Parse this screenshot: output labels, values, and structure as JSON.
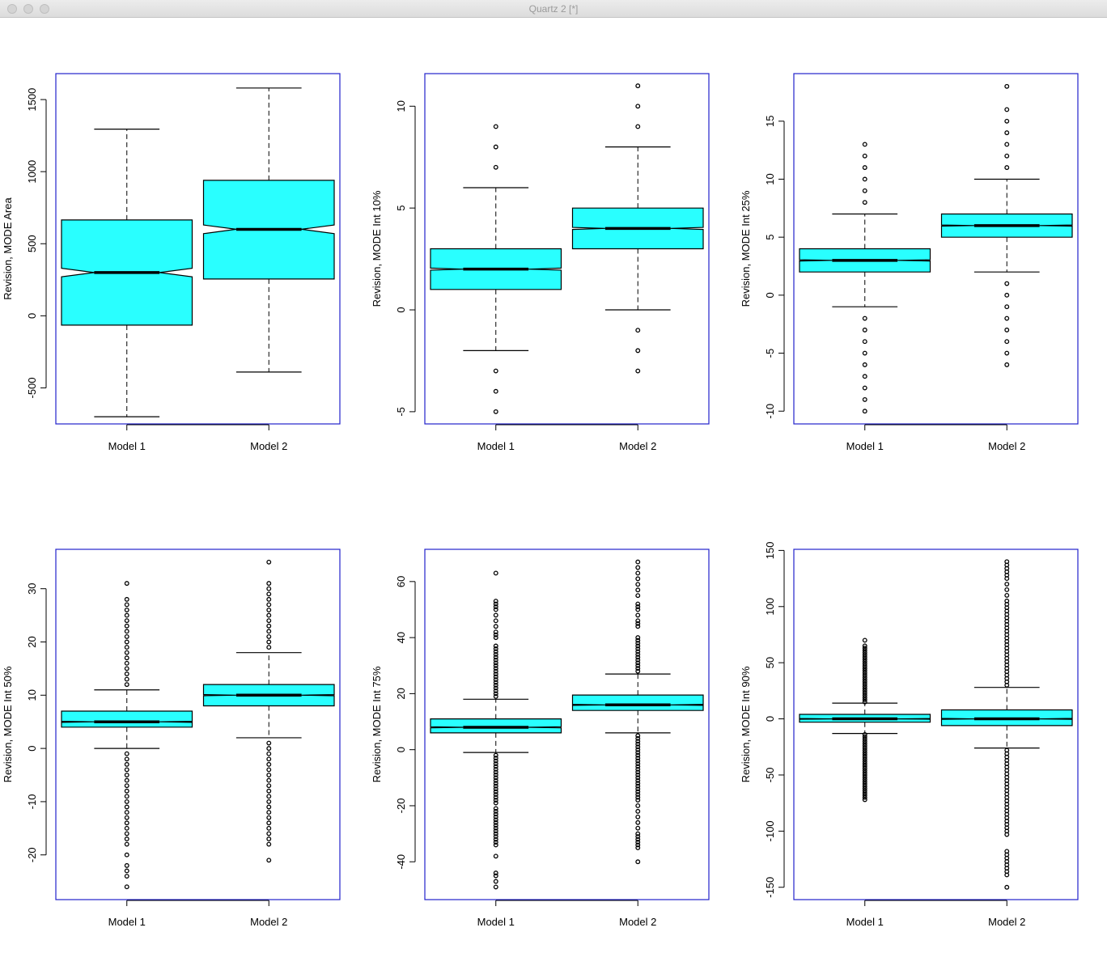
{
  "window": {
    "title": "Quartz 2 [*]"
  },
  "colors": {
    "box_fill": "#29ffff",
    "frame": "#2222cc",
    "ink": "#000000"
  },
  "chart_data": [
    {
      "type": "boxplot",
      "notched": true,
      "ylabel": "Revision, MODE Area",
      "ylim": [
        -750,
        1680
      ],
      "yticks": [
        -500,
        0,
        500,
        1000,
        1500
      ],
      "categories": [
        "Model 1",
        "Model 2"
      ],
      "boxes": [
        {
          "name": "Model 1",
          "q1": -65,
          "median": 300,
          "q3": 665,
          "whisker_low": -700,
          "whisker_high": 1295,
          "notch_low": 270,
          "notch_high": 330,
          "outliers": []
        },
        {
          "name": "Model 2",
          "q1": 255,
          "median": 600,
          "q3": 940,
          "whisker_low": -390,
          "whisker_high": 1580,
          "notch_low": 570,
          "notch_high": 630,
          "outliers": []
        }
      ]
    },
    {
      "type": "boxplot",
      "notched": true,
      "ylabel": "Revision, MODE Int 10%",
      "ylim": [
        -5.6,
        11.6
      ],
      "yticks": [
        -5,
        0,
        5,
        10
      ],
      "categories": [
        "Model 1",
        "Model 2"
      ],
      "boxes": [
        {
          "name": "Model 1",
          "q1": 1,
          "median": 2,
          "q3": 3,
          "whisker_low": -2,
          "whisker_high": 6,
          "notch_low": 1.95,
          "notch_high": 2.05,
          "outliers": [
            7,
            8,
            9,
            -3,
            -4,
            -5
          ]
        },
        {
          "name": "Model 2",
          "q1": 3,
          "median": 4,
          "q3": 5,
          "whisker_low": 0,
          "whisker_high": 8,
          "notch_low": 3.95,
          "notch_high": 4.05,
          "outliers": [
            9,
            10,
            11,
            -1,
            -2,
            -3
          ]
        }
      ]
    },
    {
      "type": "boxplot",
      "notched": true,
      "ylabel": "Revision, MODE Int 25%",
      "ylim": [
        -11.1,
        19.1
      ],
      "yticks": [
        -10,
        -5,
        0,
        5,
        10,
        15
      ],
      "categories": [
        "Model 1",
        "Model 2"
      ],
      "boxes": [
        {
          "name": "Model 1",
          "q1": 2,
          "median": 3,
          "q3": 4,
          "whisker_low": -1,
          "whisker_high": 7,
          "notch_low": 2.95,
          "notch_high": 3.05,
          "outliers": [
            8,
            9,
            10,
            11,
            12,
            13,
            -2,
            -3,
            -4,
            -5,
            -6,
            -7,
            -8,
            -9,
            -10
          ]
        },
        {
          "name": "Model 2",
          "q1": 5,
          "median": 6,
          "q3": 7,
          "whisker_low": 2,
          "whisker_high": 10,
          "notch_low": 5.95,
          "notch_high": 6.05,
          "outliers": [
            11,
            12,
            13,
            14,
            15,
            16,
            18,
            1,
            0,
            -1,
            -2,
            -3,
            -4,
            -5,
            -6
          ]
        }
      ]
    },
    {
      "type": "boxplot",
      "notched": true,
      "ylabel": "Revision, MODE Int 50%",
      "ylim": [
        -28.4,
        37.4
      ],
      "yticks": [
        -20,
        -10,
        0,
        10,
        20,
        30
      ],
      "categories": [
        "Model 1",
        "Model 2"
      ],
      "boxes": [
        {
          "name": "Model 1",
          "q1": 4,
          "median": 5,
          "q3": 7,
          "whisker_low": 0,
          "whisker_high": 11,
          "notch_low": 4.9,
          "notch_high": 5.1,
          "outliers": [
            12,
            13,
            14,
            15,
            16,
            17,
            18,
            19,
            20,
            21,
            22,
            23,
            24,
            25,
            26,
            27,
            28,
            31,
            -1,
            -2,
            -3,
            -4,
            -5,
            -6,
            -7,
            -8,
            -9,
            -10,
            -11,
            -12,
            -13,
            -14,
            -15,
            -16,
            -17,
            -18,
            -20,
            -22,
            -23,
            -24,
            -26
          ]
        },
        {
          "name": "Model 2",
          "q1": 8,
          "median": 10,
          "q3": 12,
          "whisker_low": 2,
          "whisker_high": 18,
          "notch_low": 9.9,
          "notch_high": 10.1,
          "outliers": [
            19,
            20,
            21,
            22,
            23,
            24,
            25,
            26,
            27,
            28,
            29,
            30,
            31,
            35,
            1,
            0,
            -1,
            -2,
            -3,
            -4,
            -5,
            -6,
            -7,
            -8,
            -9,
            -10,
            -11,
            -12,
            -13,
            -14,
            -15,
            -16,
            -17,
            -18,
            -21
          ]
        }
      ]
    },
    {
      "type": "boxplot",
      "notched": true,
      "ylabel": "Revision, MODE Int 75%",
      "ylim": [
        -53.5,
        71.5
      ],
      "yticks": [
        -40,
        -20,
        0,
        20,
        40,
        60
      ],
      "categories": [
        "Model 1",
        "Model 2"
      ],
      "boxes": [
        {
          "name": "Model 1",
          "q1": 6,
          "median": 8,
          "q3": 11,
          "whisker_low": -1,
          "whisker_high": 18,
          "notch_low": 7.8,
          "notch_high": 8.2,
          "outliers": [
            19,
            20,
            21,
            22,
            23,
            24,
            25,
            26,
            27,
            28,
            29,
            30,
            31,
            32,
            33,
            34,
            35,
            36,
            37,
            40,
            41,
            42,
            44,
            46,
            48,
            50,
            51,
            52,
            53,
            63,
            -2,
            -3,
            -4,
            -5,
            -6,
            -7,
            -8,
            -9,
            -10,
            -11,
            -12,
            -13,
            -14,
            -15,
            -16,
            -17,
            -18,
            -19,
            -21,
            -22,
            -23,
            -24,
            -25,
            -26,
            -27,
            -28,
            -29,
            -30,
            -31,
            -32,
            -33,
            -34,
            -38,
            -44,
            -45,
            -47,
            -49
          ]
        },
        {
          "name": "Model 2",
          "q1": 14,
          "median": 16,
          "q3": 19.5,
          "whisker_low": 6,
          "whisker_high": 27,
          "notch_low": 15.8,
          "notch_high": 16.2,
          "outliers": [
            28,
            29,
            30,
            31,
            32,
            33,
            34,
            35,
            36,
            37,
            38,
            39,
            40,
            44,
            45,
            46,
            48,
            50,
            51,
            52,
            55,
            57,
            59,
            61,
            63,
            65,
            67,
            5,
            4,
            3,
            2,
            1,
            0,
            -1,
            -2,
            -3,
            -4,
            -5,
            -6,
            -7,
            -8,
            -9,
            -10,
            -11,
            -12,
            -13,
            -14,
            -15,
            -16,
            -17,
            -18,
            -20,
            -22,
            -24,
            -26,
            -28,
            -30,
            -31,
            -32,
            -33,
            -34,
            -35,
            -40
          ]
        }
      ]
    },
    {
      "type": "boxplot",
      "notched": true,
      "ylabel": "Revision, MODE Int 90%",
      "ylim": [
        -161,
        151
      ],
      "yticks": [
        -150,
        -100,
        -50,
        0,
        50,
        100,
        150
      ],
      "categories": [
        "Model 1",
        "Model 2"
      ],
      "boxes": [
        {
          "name": "Model 1",
          "q1": -3,
          "median": 0,
          "q3": 4,
          "whisker_low": -13,
          "whisker_high": 14,
          "notch_low": -0.3,
          "notch_high": 0.3,
          "outliers": [
            15,
            17,
            19,
            21,
            23,
            25,
            27,
            29,
            31,
            33,
            35,
            37,
            39,
            41,
            43,
            45,
            47,
            49,
            51,
            53,
            55,
            57,
            59,
            61,
            63,
            65,
            70,
            -14,
            -16,
            -18,
            -20,
            -22,
            -24,
            -26,
            -28,
            -30,
            -32,
            -34,
            -36,
            -38,
            -40,
            -42,
            -44,
            -46,
            -48,
            -50,
            -52,
            -54,
            -56,
            -58,
            -60,
            -62,
            -64,
            -66,
            -68,
            -70,
            -72
          ]
        },
        {
          "name": "Model 2",
          "q1": -6,
          "median": 0,
          "q3": 8,
          "whisker_low": -26,
          "whisker_high": 28,
          "notch_low": -0.4,
          "notch_high": 0.4,
          "outliers": [
            30,
            33,
            36,
            39,
            42,
            45,
            48,
            51,
            54,
            57,
            60,
            63,
            66,
            69,
            72,
            75,
            78,
            81,
            84,
            87,
            90,
            93,
            96,
            99,
            102,
            105,
            110,
            115,
            120,
            125,
            128,
            131,
            134,
            137,
            140,
            -28,
            -31,
            -34,
            -37,
            -40,
            -43,
            -46,
            -49,
            -52,
            -55,
            -58,
            -61,
            -64,
            -67,
            -70,
            -73,
            -76,
            -79,
            -82,
            -85,
            -88,
            -91,
            -94,
            -97,
            -100,
            -103,
            -118,
            -121,
            -124,
            -127,
            -130,
            -133,
            -136,
            -139,
            -150
          ]
        }
      ]
    }
  ]
}
